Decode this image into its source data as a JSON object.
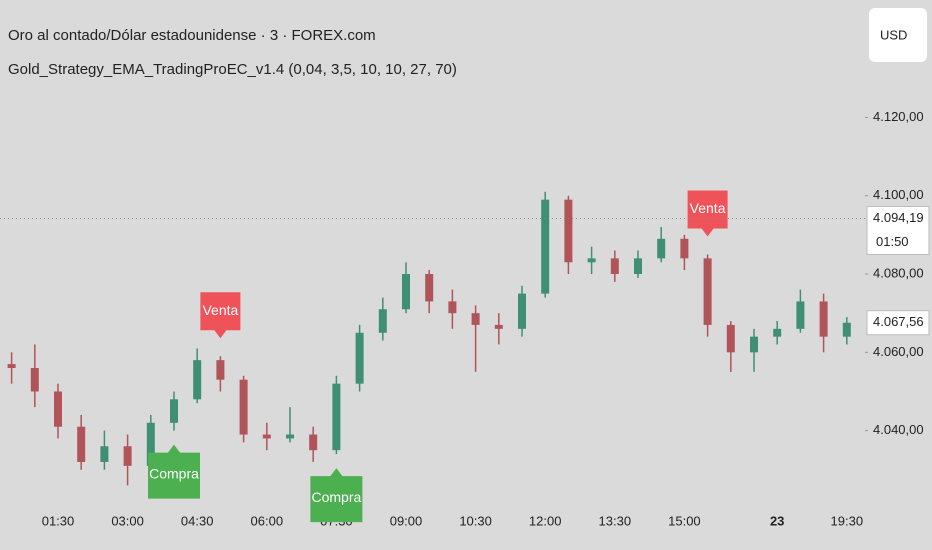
{
  "chart_data": {
    "type": "candlestick",
    "title": "Oro al contado/Dólar estadounidense · 3 · FOREX.com",
    "subtitle": "Gold_Strategy_EMA_TradingProEC_v1.4 (0,04, 3,5, 10, 10, 27, 70)",
    "currency_button": "USD",
    "categories": [
      null,
      null,
      "01:30",
      null,
      null,
      "03:00",
      null,
      null,
      "04:30",
      null,
      null,
      "06:00",
      null,
      null,
      "07:30",
      null,
      null,
      "09:00",
      null,
      null,
      "10:30",
      null,
      null,
      "12:00",
      null,
      null,
      "13:30",
      null,
      null,
      "15:00",
      null,
      null,
      null,
      "23",
      null,
      null,
      "19:30"
    ],
    "candles": [
      [
        4057,
        4060,
        4052,
        4056
      ],
      [
        4056,
        4062,
        4046,
        4050
      ],
      [
        4050,
        4052,
        4038,
        4041
      ],
      [
        4041,
        4044,
        4030,
        4032
      ],
      [
        4032,
        4040,
        4030,
        4036
      ],
      [
        4036,
        4039,
        4026,
        4031
      ],
      [
        4031,
        4044,
        4030,
        4042
      ],
      [
        4042,
        4050,
        4040,
        4048
      ],
      [
        4048,
        4061,
        4047,
        4058
      ],
      [
        4058,
        4059,
        4050,
        4053
      ],
      [
        4053,
        4054,
        4037,
        4039
      ],
      [
        4039,
        4042,
        4035,
        4038
      ],
      [
        4038,
        4046,
        4037,
        4039
      ],
      [
        4039,
        4041,
        4032,
        4035
      ],
      [
        4035,
        4054,
        4034,
        4052
      ],
      [
        4052,
        4067,
        4050,
        4065
      ],
      [
        4065,
        4074,
        4063,
        4071
      ],
      [
        4071,
        4083,
        4070,
        4080
      ],
      [
        4080,
        4081,
        4070,
        4073
      ],
      [
        4073,
        4076,
        4066,
        4070
      ],
      [
        4070,
        4072,
        4055,
        4067
      ],
      [
        4067,
        4070,
        4062,
        4066
      ],
      [
        4066,
        4077,
        4064,
        4075
      ],
      [
        4075,
        4101,
        4074,
        4099
      ],
      [
        4099,
        4100,
        4080,
        4083
      ],
      [
        4083,
        4087,
        4080,
        4084
      ],
      [
        4084,
        4086,
        4078,
        4080
      ],
      [
        4080,
        4086,
        4079,
        4084
      ],
      [
        4084,
        4092,
        4083,
        4089
      ],
      [
        4089,
        4090,
        4081,
        4084
      ],
      [
        4084,
        4085,
        4064,
        4067
      ],
      [
        4067,
        4068,
        4055,
        4060
      ],
      [
        4060,
        4066,
        4055,
        4064
      ],
      [
        4064,
        4068,
        4062,
        4066
      ],
      [
        4066,
        4076,
        4065,
        4073
      ],
      [
        4073,
        4075,
        4060,
        4064
      ],
      [
        4064,
        4069,
        4062,
        4067.56
      ]
    ],
    "signals": [
      null,
      null,
      null,
      null,
      null,
      null,
      null,
      "Compra",
      null,
      "Venta",
      null,
      null,
      null,
      null,
      "Compra",
      null,
      null,
      null,
      null,
      null,
      null,
      null,
      null,
      null,
      null,
      null,
      null,
      null,
      null,
      null,
      "Venta",
      null,
      null,
      null,
      null,
      null,
      null
    ],
    "up_color": "#3f8f74",
    "down_color": "#b0545a",
    "buy_color": "#4caf50",
    "sell_color": "#f0525a",
    "ylim": [
      4021,
      4150
    ],
    "yticks": [
      {
        "value": 4040,
        "label": "4.040,00"
      },
      {
        "value": 4060,
        "label": "4.060,00"
      },
      {
        "value": 4080,
        "label": "4.080,00"
      },
      {
        "value": 4100,
        "label": "4.100,00"
      },
      {
        "value": 4120,
        "label": "4.120,00"
      }
    ],
    "price_lines": [
      {
        "value": 4094.19,
        "label": "4.094,19",
        "countdown": "01:50"
      },
      {
        "value": 4067.56,
        "label": "4.067,56"
      }
    ]
  }
}
